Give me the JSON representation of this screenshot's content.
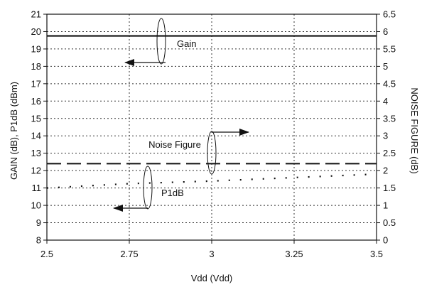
{
  "chart_data": {
    "type": "line",
    "title": "",
    "xlabel": "Vdd (Vdd)",
    "ylabel_left": "GAIN (dB), P1dB (dBm)",
    "ylabel_right": "NOISE FIGURE (dB)",
    "xlim": [
      2.5,
      3.5
    ],
    "ylim_left": [
      8,
      21
    ],
    "ylim_right": [
      0,
      6.5
    ],
    "x_ticks": [
      "2.5",
      "2.75",
      "3",
      "3.25",
      "3.5"
    ],
    "y_left_ticks": [
      "8",
      "9",
      "10",
      "11",
      "12",
      "13",
      "14",
      "15",
      "16",
      "17",
      "18",
      "19",
      "20",
      "21"
    ],
    "y_right_ticks": [
      "0",
      "0.5",
      "1",
      "1.5",
      "2",
      "2.5",
      "3",
      "3.5",
      "4",
      "4.5",
      "5",
      "5.5",
      "6",
      "6.5"
    ],
    "grid": true,
    "series": [
      {
        "name": "Gain",
        "axis": "left",
        "x": [
          2.5,
          3.5
        ],
        "y": [
          19.75,
          19.75
        ],
        "style": "solid"
      },
      {
        "name": "Noise Figure",
        "axis": "right",
        "x": [
          2.5,
          3.5
        ],
        "y": [
          2.2,
          2.2
        ],
        "style": "dashed"
      },
      {
        "name": "P1dB",
        "axis": "left",
        "x": [
          2.5,
          2.75,
          3.0,
          3.25,
          3.5
        ],
        "y": [
          11.0,
          11.25,
          11.4,
          11.6,
          11.8
        ],
        "style": "dotted"
      }
    ],
    "annotations": [
      {
        "text": "Gain",
        "points_to": "left"
      },
      {
        "text": "Noise Figure",
        "points_to": "right"
      },
      {
        "text": "P1dB",
        "points_to": "left"
      }
    ]
  }
}
